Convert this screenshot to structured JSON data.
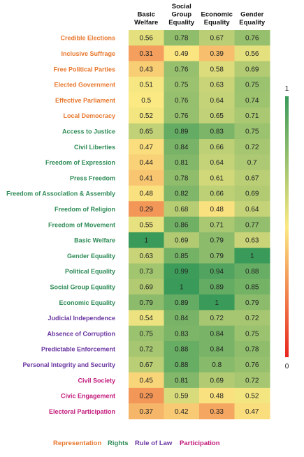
{
  "chart_data": {
    "type": "heatmap",
    "columns": [
      "Basic Welfare",
      "Social Group Equality",
      "Economic Equality",
      "Gender Equality"
    ],
    "columns_display": [
      [
        "Basic",
        "Welfare"
      ],
      [
        "Social",
        "Group",
        "Equality"
      ],
      [
        "Economic",
        "Equality"
      ],
      [
        "Gender",
        "Equality"
      ]
    ],
    "rows": [
      {
        "label": "Credible Elections",
        "group": "Representation",
        "values": [
          0.56,
          0.78,
          0.67,
          0.76
        ]
      },
      {
        "label": "Inclusive Suffrage",
        "group": "Representation",
        "values": [
          0.31,
          0.49,
          0.39,
          0.56
        ]
      },
      {
        "label": "Free Political Parties",
        "group": "Representation",
        "values": [
          0.43,
          0.76,
          0.58,
          0.69
        ]
      },
      {
        "label": "Elected Government",
        "group": "Representation",
        "values": [
          0.51,
          0.75,
          0.63,
          0.75
        ]
      },
      {
        "label": "Effective Parliament",
        "group": "Representation",
        "values": [
          0.5,
          0.76,
          0.64,
          0.74
        ]
      },
      {
        "label": "Local Democracy",
        "group": "Representation",
        "values": [
          0.52,
          0.76,
          0.65,
          0.71
        ]
      },
      {
        "label": "Access to Justice",
        "group": "Rights",
        "values": [
          0.65,
          0.89,
          0.83,
          0.75
        ]
      },
      {
        "label": "Civil Liberties",
        "group": "Rights",
        "values": [
          0.47,
          0.84,
          0.66,
          0.72
        ]
      },
      {
        "label": "Freedom of Expression",
        "group": "Rights",
        "values": [
          0.44,
          0.81,
          0.64,
          0.7
        ]
      },
      {
        "label": "Press Freedom",
        "group": "Rights",
        "values": [
          0.41,
          0.78,
          0.61,
          0.67
        ]
      },
      {
        "label": "Freedom of Association & Assembly",
        "group": "Rights",
        "values": [
          0.48,
          0.82,
          0.66,
          0.69
        ]
      },
      {
        "label": "Freedom of Religion",
        "group": "Rights",
        "values": [
          0.29,
          0.68,
          0.48,
          0.64
        ]
      },
      {
        "label": "Freedom of Movement",
        "group": "Rights",
        "values": [
          0.55,
          0.86,
          0.71,
          0.77
        ]
      },
      {
        "label": "Basic Welfare",
        "group": "Rights",
        "values": [
          1,
          0.69,
          0.79,
          0.63
        ]
      },
      {
        "label": "Gender Equality",
        "group": "Rights",
        "values": [
          0.63,
          0.85,
          0.79,
          1
        ]
      },
      {
        "label": "Political Equality",
        "group": "Rights",
        "values": [
          0.73,
          0.99,
          0.94,
          0.88
        ]
      },
      {
        "label": "Social Group Equality",
        "group": "Rights",
        "values": [
          0.69,
          1,
          0.89,
          0.85
        ]
      },
      {
        "label": "Economic Equality",
        "group": "Rights",
        "values": [
          0.79,
          0.89,
          1,
          0.79
        ]
      },
      {
        "label": "Judicial Independence",
        "group": "Rule of Law",
        "values": [
          0.54,
          0.84,
          0.72,
          0.72
        ]
      },
      {
        "label": "Absence of Corruption",
        "group": "Rule of Law",
        "values": [
          0.75,
          0.83,
          0.84,
          0.75
        ]
      },
      {
        "label": "Predictable Enforcement",
        "group": "Rule of Law",
        "values": [
          0.72,
          0.88,
          0.84,
          0.78
        ]
      },
      {
        "label": "Personal Integrity and Security",
        "group": "Rule of Law",
        "values": [
          0.67,
          0.88,
          0.8,
          0.76
        ]
      },
      {
        "label": "Civil Society",
        "group": "Participation",
        "values": [
          0.45,
          0.81,
          0.69,
          0.72
        ]
      },
      {
        "label": "Civic Engagement",
        "group": "Participation",
        "values": [
          0.29,
          0.59,
          0.48,
          0.52
        ]
      },
      {
        "label": "Electoral Participation",
        "group": "Participation",
        "values": [
          0.37,
          0.42,
          0.33,
          0.47
        ]
      }
    ],
    "groups": [
      {
        "name": "Representation",
        "color": "#E8772E"
      },
      {
        "name": "Rights",
        "color": "#2E8B57"
      },
      {
        "name": "Rule of Law",
        "color": "#6A35A0"
      },
      {
        "name": "Participation",
        "color": "#C2187A"
      }
    ],
    "color_scale": {
      "min": 0,
      "max": 1,
      "min_label": "0",
      "max_label": "1",
      "stops": [
        "#E8251F",
        "#FBE983",
        "#3A9A5A"
      ]
    },
    "legend_position": "bottom"
  }
}
